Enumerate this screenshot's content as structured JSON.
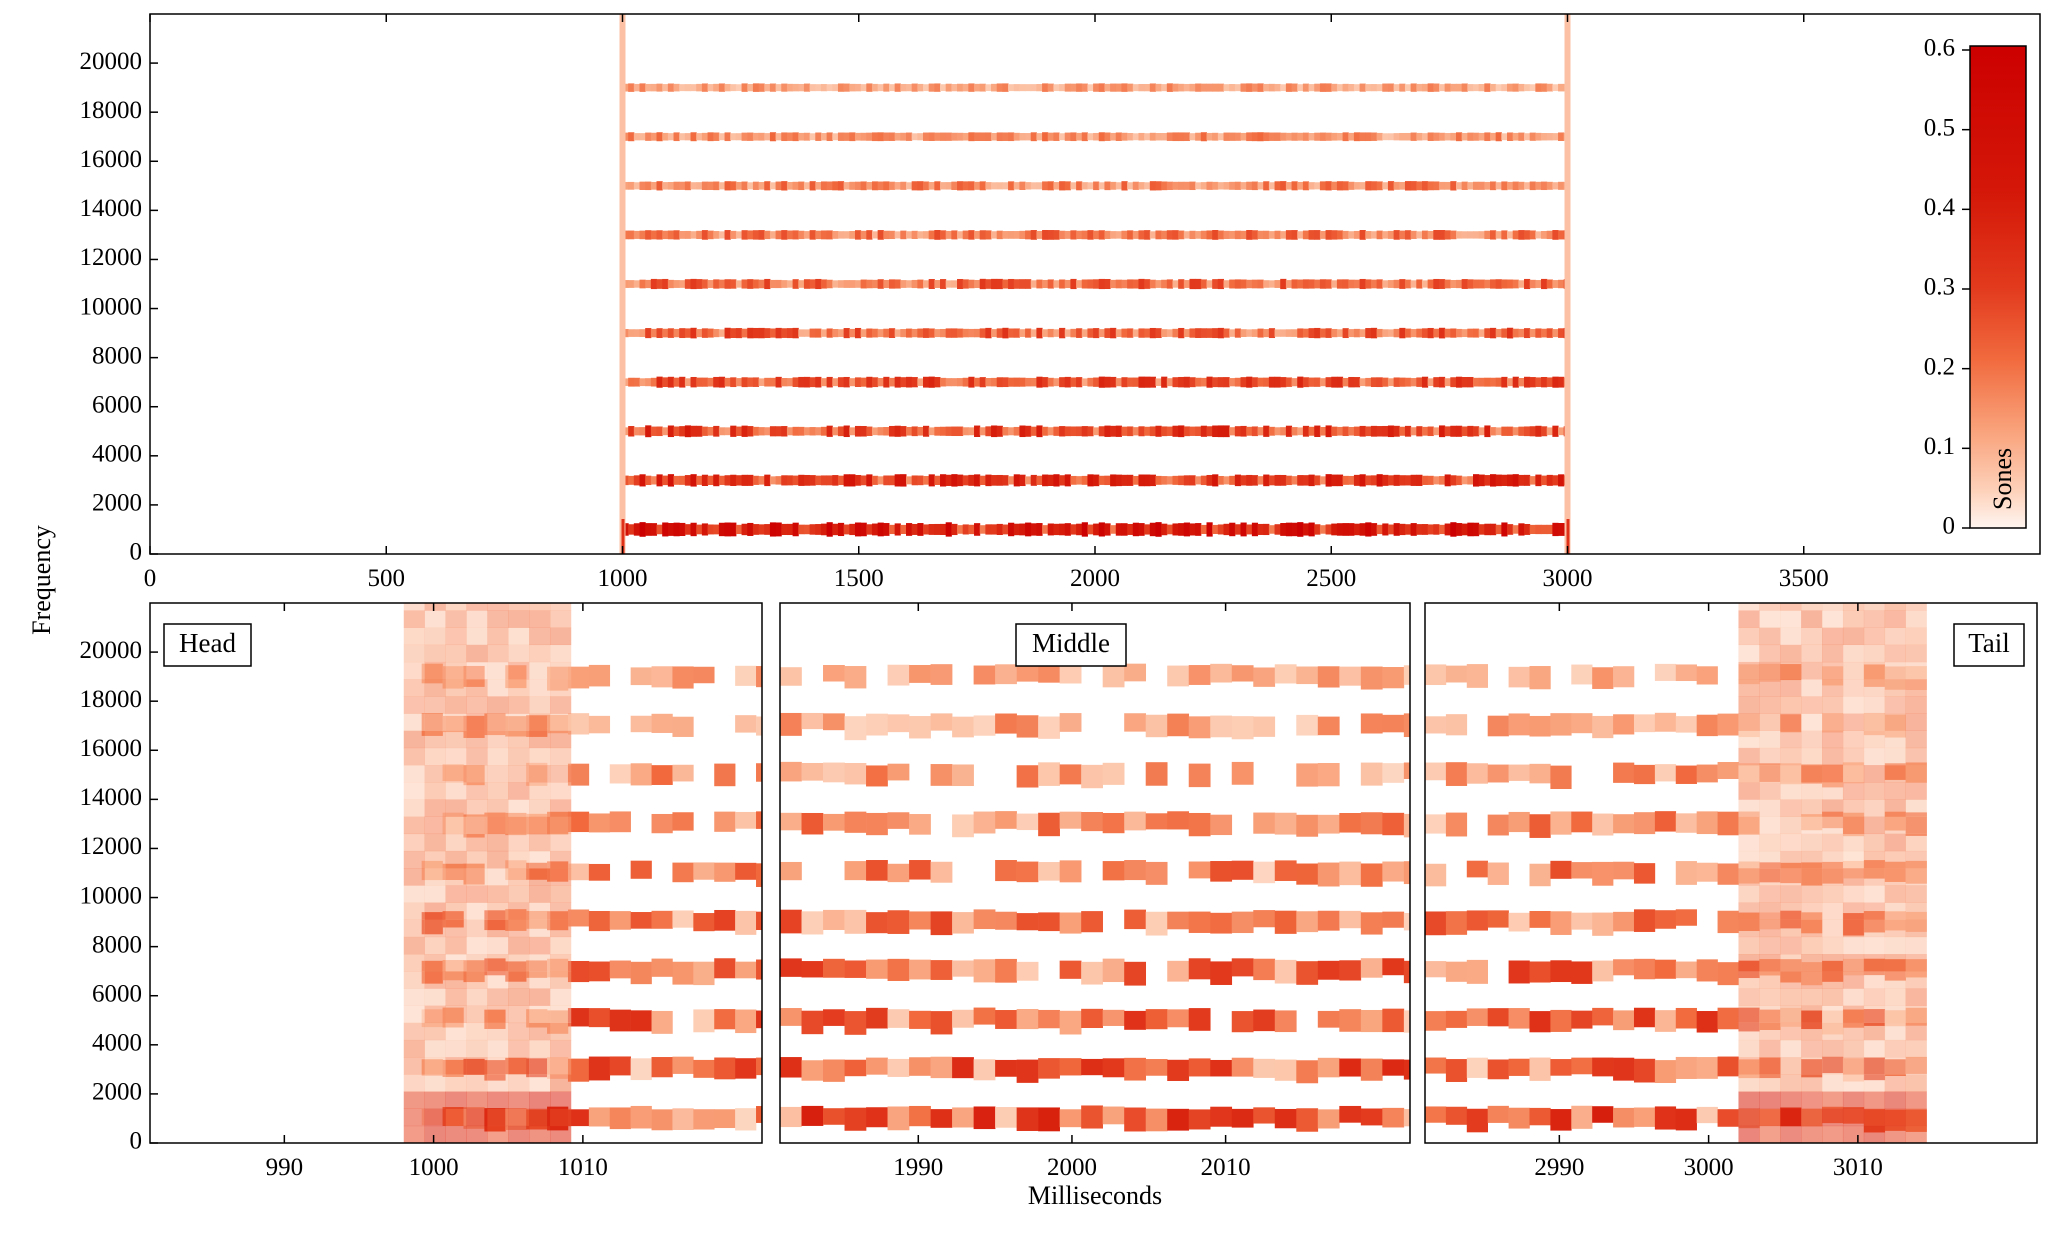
{
  "chart_data": [
    {
      "type": "heatmap",
      "panel": "full",
      "title": "",
      "label": "",
      "xlabel": "",
      "ylabel": "Frequency",
      "xlim": [
        0,
        4000
      ],
      "ylim": [
        0,
        22000
      ],
      "xticks": [
        "0",
        "500",
        "1000",
        "1500",
        "2000",
        "2500",
        "3000",
        "3500"
      ],
      "xtick_values": [
        0,
        500,
        1000,
        1500,
        2000,
        2500,
        3000,
        3500
      ],
      "yticks": [
        "0",
        "2000",
        "4000",
        "6000",
        "8000",
        "10000",
        "12000",
        "14000",
        "16000",
        "18000",
        "20000"
      ],
      "ytick_values": [
        0,
        2000,
        4000,
        6000,
        8000,
        10000,
        12000,
        14000,
        16000,
        18000,
        20000
      ],
      "signal_start": 1000,
      "signal_end": 3000,
      "band_centers": [
        1000,
        3000,
        5000,
        7000,
        9000,
        11000,
        13000,
        15000,
        17000,
        19000
      ],
      "band_intensity": [
        0.4,
        0.3,
        0.27,
        0.24,
        0.22,
        0.2,
        0.18,
        0.16,
        0.14,
        0.12
      ]
    },
    {
      "type": "heatmap",
      "panel": "head",
      "label": "Head",
      "xlim": [
        981,
        1022
      ],
      "ylim": [
        0,
        22000
      ],
      "xticks": [
        "990",
        "1000",
        "1010"
      ],
      "xtick_values": [
        990,
        1000,
        1010
      ],
      "yticks": [
        "0",
        "2000",
        "4000",
        "6000",
        "8000",
        "10000",
        "12000",
        "14000",
        "16000",
        "18000",
        "20000"
      ],
      "ytick_values": [
        0,
        2000,
        4000,
        6000,
        8000,
        10000,
        12000,
        14000,
        16000,
        18000,
        20000
      ],
      "onset_window": [
        998,
        1009
      ],
      "band_centers": [
        1000,
        3000,
        5000,
        7000,
        9000,
        11000,
        13000,
        15000,
        17000,
        19000
      ]
    },
    {
      "type": "heatmap",
      "panel": "middle",
      "label": "Middle",
      "xlim": [
        1981,
        2022
      ],
      "ylim": [
        0,
        22000
      ],
      "xticks": [
        "1990",
        "2000",
        "2010"
      ],
      "xtick_values": [
        1990,
        2000,
        2010
      ],
      "band_centers": [
        1000,
        3000,
        5000,
        7000,
        9000,
        11000,
        13000,
        15000,
        17000,
        19000
      ]
    },
    {
      "type": "heatmap",
      "panel": "tail",
      "label": "Tail",
      "xlim": [
        2981,
        3022
      ],
      "ylim": [
        0,
        22000
      ],
      "xticks": [
        "2990",
        "3000",
        "3010"
      ],
      "xtick_values": [
        2990,
        3000,
        3010
      ],
      "offset_window": [
        3002,
        3014
      ],
      "band_centers": [
        1000,
        3000,
        5000,
        7000,
        9000,
        11000,
        13000,
        15000,
        17000,
        19000
      ]
    }
  ],
  "shared": {
    "xlabel": "Milliseconds",
    "ylabel": "Frequency"
  },
  "colorbar": {
    "label": "Sones",
    "min": 0,
    "max": 0.6,
    "ticks": [
      "0",
      "0.1",
      "0.2",
      "0.3",
      "0.4",
      "0.5",
      "0.6"
    ],
    "tick_values": [
      0,
      0.1,
      0.2,
      0.3,
      0.4,
      0.5,
      0.6
    ],
    "color_low": "#fff5f0",
    "color_high": "#cc0000"
  }
}
